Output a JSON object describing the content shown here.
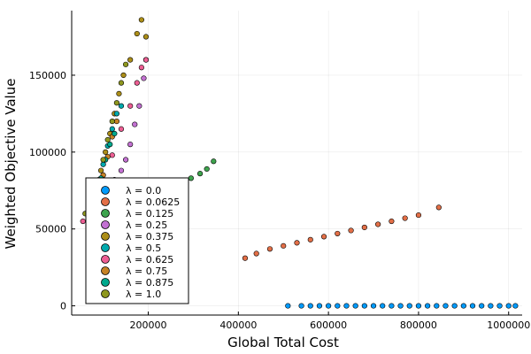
{
  "chart_data": {
    "type": "scatter",
    "title": "",
    "xlabel": "Global Total Cost",
    "ylabel": "Weighted Objective Value",
    "xlim": [
      30000,
      1030000
    ],
    "ylim": [
      -6000,
      192000
    ],
    "xticks": [
      200000,
      400000,
      600000,
      800000,
      1000000
    ],
    "xtick_labels": [
      "200000",
      "400000",
      "600000",
      "800000",
      "1000000"
    ],
    "yticks": [
      0,
      50000,
      100000,
      150000
    ],
    "ytick_labels": [
      "0",
      "50000",
      "100000",
      "150000"
    ],
    "grid": true,
    "legend_position": "bottom-left",
    "series": [
      {
        "name": "λ = 0.0",
        "color": "#009AFA",
        "x": [
          510000,
          540000,
          560000,
          580000,
          600000,
          620000,
          640000,
          660000,
          680000,
          700000,
          720000,
          740000,
          760000,
          780000,
          800000,
          820000,
          840000,
          860000,
          880000,
          900000,
          920000,
          940000,
          960000,
          980000,
          1000000,
          1015000
        ],
        "y": [
          0,
          0,
          0,
          0,
          0,
          0,
          0,
          0,
          0,
          0,
          0,
          0,
          0,
          0,
          0,
          0,
          0,
          0,
          0,
          0,
          0,
          0,
          0,
          0,
          0,
          0
        ]
      },
      {
        "name": "λ = 0.0625",
        "color": "#E36F47",
        "x": [
          415000,
          440000,
          470000,
          500000,
          530000,
          560000,
          590000,
          620000,
          650000,
          680000,
          710000,
          740000,
          770000,
          800000,
          845000
        ],
        "y": [
          31000,
          34000,
          37000,
          39000,
          41000,
          43000,
          45000,
          47000,
          49000,
          51000,
          53000,
          55000,
          57000,
          59000,
          64000
        ]
      },
      {
        "name": "λ = 0.125",
        "color": "#3EA44E",
        "x": [
          90000,
          150000,
          200000,
          240000,
          270000,
          295000,
          315000,
          330000,
          345000
        ],
        "y": [
          62000,
          68000,
          73000,
          77000,
          80000,
          83000,
          86000,
          89000,
          94000
        ]
      },
      {
        "name": "λ = 0.25",
        "color": "#C371D2",
        "x": [
          90000,
          110000,
          125000,
          140000,
          150000,
          160000,
          170000,
          180000,
          190000,
          195000
        ],
        "y": [
          70000,
          75000,
          82000,
          88000,
          95000,
          105000,
          118000,
          130000,
          148000,
          160000
        ]
      },
      {
        "name": "λ = 0.375",
        "color": "#AC8E18",
        "x": [
          85000,
          95000,
          105000,
          115000,
          125000,
          135000,
          145000,
          160000,
          175000,
          185000,
          195000
        ],
        "y": [
          75000,
          88000,
          100000,
          112000,
          125000,
          138000,
          150000,
          160000,
          177000,
          186000,
          175000
        ]
      },
      {
        "name": "λ = 0.5",
        "color": "#00A9AD",
        "x": [
          90000,
          100000,
          110000,
          120000,
          130000,
          140000
        ],
        "y": [
          80000,
          92000,
          104000,
          115000,
          125000,
          130000
        ]
      },
      {
        "name": "λ = 0.625",
        "color": "#ED5E93",
        "x": [
          55000,
          80000,
          100000,
          120000,
          140000,
          160000,
          175000,
          185000,
          195000
        ],
        "y": [
          55000,
          68000,
          82000,
          98000,
          115000,
          130000,
          145000,
          155000,
          160000
        ]
      },
      {
        "name": "λ = 0.75",
        "color": "#C68225",
        "x": [
          90000,
          100000,
          110000,
          120000,
          130000
        ],
        "y": [
          72000,
          85000,
          97000,
          110000,
          120000
        ]
      },
      {
        "name": "λ = 0.875",
        "color": "#00A98D",
        "x": [
          85000,
          95000,
          105000,
          115000,
          125000
        ],
        "y": [
          70000,
          83000,
          95000,
          105000,
          112000
        ]
      },
      {
        "name": "λ = 1.0",
        "color": "#8E971E",
        "x": [
          60000,
          75000,
          90000,
          100000,
          110000,
          120000,
          130000,
          140000,
          150000
        ],
        "y": [
          60000,
          70000,
          82000,
          95000,
          108000,
          120000,
          132000,
          145000,
          157000
        ]
      }
    ]
  }
}
